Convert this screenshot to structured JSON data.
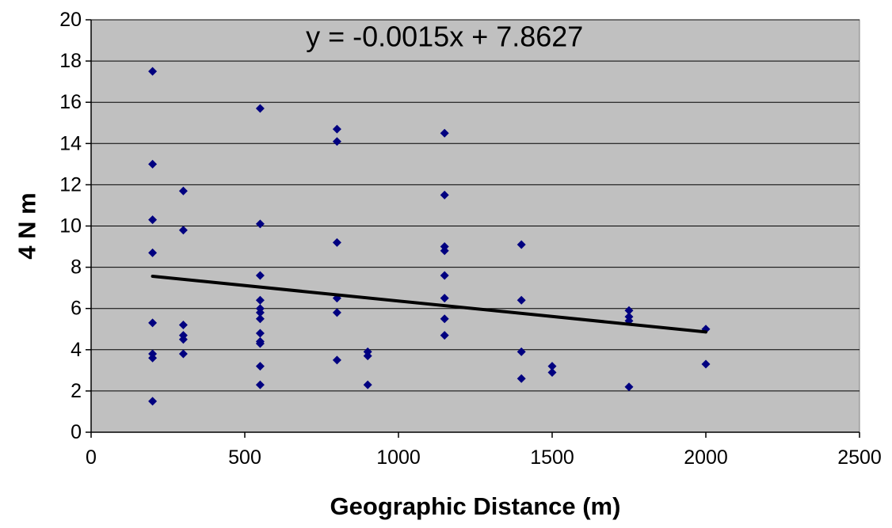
{
  "chart_data": {
    "type": "scatter",
    "title": "",
    "xlabel": "Geographic Distance (m)",
    "ylabel": "4 N m",
    "xlim": [
      0,
      2500
    ],
    "ylim": [
      0,
      20
    ],
    "x_ticks": [
      0,
      500,
      1000,
      1500,
      2000,
      2500
    ],
    "y_ticks": [
      0,
      2,
      4,
      6,
      8,
      10,
      12,
      14,
      16,
      18,
      20
    ],
    "grid": "horizontal",
    "legend": "none",
    "annotation": "y = -0.0015x + 7.8627",
    "colors": {
      "plot_background": "#c0c0c0",
      "points": "#000080",
      "trendline": "#000000",
      "gridlines": "#000000"
    },
    "series": [
      {
        "marker": "diamond",
        "points": [
          [
            200,
            17.5
          ],
          [
            200,
            13.0
          ],
          [
            200,
            10.3
          ],
          [
            200,
            8.7
          ],
          [
            200,
            5.3
          ],
          [
            200,
            3.8
          ],
          [
            200,
            3.6
          ],
          [
            200,
            1.5
          ],
          [
            300,
            11.7
          ],
          [
            300,
            9.8
          ],
          [
            300,
            5.2
          ],
          [
            300,
            4.7
          ],
          [
            300,
            4.5
          ],
          [
            300,
            3.8
          ],
          [
            550,
            15.7
          ],
          [
            550,
            10.1
          ],
          [
            550,
            7.6
          ],
          [
            550,
            6.4
          ],
          [
            550,
            6.0
          ],
          [
            550,
            5.8
          ],
          [
            550,
            5.5
          ],
          [
            550,
            4.8
          ],
          [
            550,
            4.4
          ],
          [
            550,
            4.3
          ],
          [
            550,
            3.2
          ],
          [
            550,
            2.3
          ],
          [
            800,
            14.7
          ],
          [
            800,
            14.1
          ],
          [
            800,
            9.2
          ],
          [
            800,
            6.5
          ],
          [
            800,
            5.8
          ],
          [
            800,
            3.5
          ],
          [
            900,
            3.9
          ],
          [
            900,
            3.7
          ],
          [
            900,
            2.3
          ],
          [
            1150,
            14.5
          ],
          [
            1150,
            11.5
          ],
          [
            1150,
            9.0
          ],
          [
            1150,
            8.8
          ],
          [
            1150,
            7.6
          ],
          [
            1150,
            6.5
          ],
          [
            1150,
            5.5
          ],
          [
            1150,
            4.7
          ],
          [
            1400,
            9.1
          ],
          [
            1400,
            6.4
          ],
          [
            1400,
            3.9
          ],
          [
            1400,
            2.6
          ],
          [
            1500,
            3.2
          ],
          [
            1500,
            2.9
          ],
          [
            1750,
            5.9
          ],
          [
            1750,
            5.6
          ],
          [
            1750,
            5.4
          ],
          [
            1750,
            2.2
          ],
          [
            2000,
            5.0
          ],
          [
            2000,
            3.3
          ]
        ]
      }
    ],
    "trendline": {
      "slope": -0.0015,
      "intercept": 7.8627,
      "x_range": [
        200,
        2000
      ]
    }
  }
}
